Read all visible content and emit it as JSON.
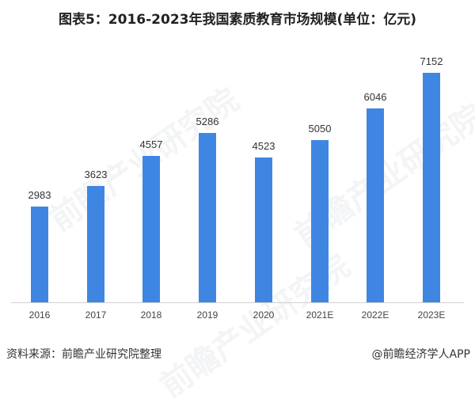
{
  "title": "图表5：2016-2023年我国素质教育市场规模(单位：亿元)",
  "footer": {
    "source": "资料来源：前瞻产业研究院整理",
    "credit": "@前瞻经济学人APP"
  },
  "watermark": "前瞻产业研究院",
  "colors": {
    "bar": "#3f86e3",
    "axis": "#d0d0d0"
  },
  "chart_data": {
    "type": "bar",
    "title": "图表5：2016-2023年我国素质教育市场规模(单位：亿元)",
    "xlabel": "",
    "ylabel": "",
    "unit": "亿元",
    "categories": [
      "2016",
      "2017",
      "2018",
      "2019",
      "2020",
      "2021E",
      "2022E",
      "2023E"
    ],
    "values": [
      2983,
      3623,
      4557,
      5286,
      4523,
      5050,
      6046,
      7152
    ],
    "grid": false,
    "legend": null,
    "data_labels": true
  }
}
